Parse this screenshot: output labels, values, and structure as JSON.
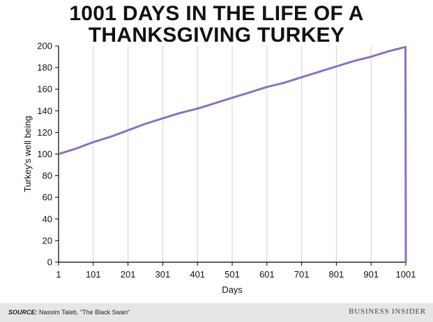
{
  "title_lines": [
    "1001 DAYS IN THE LIFE OF A",
    "THANKSGIVING TURKEY"
  ],
  "footer": {
    "source_label": "SOURCE:",
    "source_text": "Nassim Taleb, \"The Black Swan\"",
    "brand": "BUSINESS INSIDER"
  },
  "colors": {
    "line": "#8b6fc6",
    "grid": "#d0d0d0",
    "axis": "#000000"
  },
  "chart_data": {
    "type": "line",
    "title": "1001 DAYS IN THE LIFE OF A THANKSGIVING TURKEY",
    "xlabel": "Days",
    "ylabel": "Turkey's well being",
    "xlim": [
      1,
      1001
    ],
    "ylim": [
      0,
      200
    ],
    "x_ticks": [
      1,
      101,
      201,
      301,
      401,
      501,
      601,
      701,
      801,
      901,
      1001
    ],
    "y_ticks": [
      0,
      20,
      40,
      60,
      80,
      100,
      120,
      140,
      160,
      180,
      200
    ],
    "grid": "vertical",
    "series": [
      {
        "x": [
          1,
          51,
          101,
          151,
          201,
          251,
          301,
          351,
          401,
          451,
          501,
          551,
          601,
          651,
          701,
          751,
          801,
          851,
          901,
          951,
          1000,
          1001
        ],
        "y": [
          100,
          105,
          111,
          116,
          122,
          128,
          133,
          138,
          142,
          147,
          152,
          157,
          162,
          166,
          171,
          176,
          181,
          186,
          190,
          195,
          199,
          0
        ]
      }
    ]
  }
}
